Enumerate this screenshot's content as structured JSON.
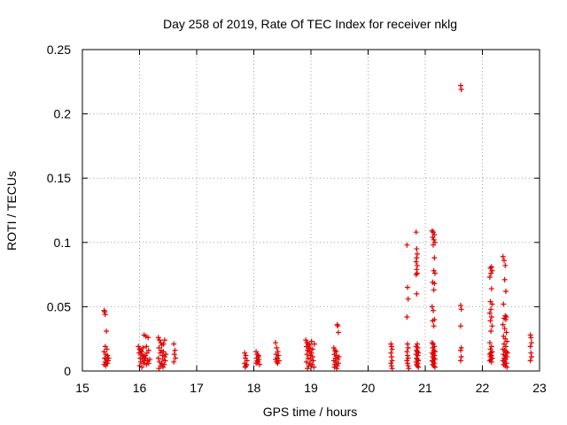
{
  "colors": {
    "marker": "#e00000",
    "grid": "#a0a0a0",
    "axis": "#000000"
  },
  "chart_data": {
    "type": "scatter",
    "title": "Day 258 of 2019, Rate Of TEC Index for receiver nklg",
    "xlabel": "GPS time / hours",
    "ylabel": "ROTI / TECUs",
    "xlim": [
      15,
      23
    ],
    "ylim": [
      0,
      0.25
    ],
    "xticks": [
      15,
      16,
      17,
      18,
      19,
      20,
      21,
      22,
      23
    ],
    "xtick_labels": [
      "15",
      "16",
      "17",
      "18",
      "19",
      "20",
      "21",
      "22",
      "23"
    ],
    "yticks": [
      0,
      0.05,
      0.1,
      0.15,
      0.2,
      0.25
    ],
    "ytick_labels": [
      "0",
      "0.05",
      "0.1",
      "0.15",
      "0.2",
      "0.25"
    ],
    "grid": true,
    "marker": "+",
    "series": [
      {
        "name": "ROTI",
        "points": [
          [
            15.38,
            0.047
          ],
          [
            15.39,
            0.046
          ],
          [
            15.4,
            0.044
          ],
          [
            15.42,
            0.031
          ],
          [
            15.4,
            0.019
          ],
          [
            15.43,
            0.017
          ],
          [
            15.38,
            0.015
          ],
          [
            15.41,
            0.013
          ],
          [
            15.44,
            0.012
          ],
          [
            15.39,
            0.01
          ],
          [
            15.42,
            0.009
          ],
          [
            15.45,
            0.008
          ],
          [
            15.4,
            0.007
          ],
          [
            15.43,
            0.006
          ],
          [
            15.38,
            0.005
          ],
          [
            15.41,
            0.004
          ],
          [
            15.44,
            0.006
          ],
          [
            15.46,
            0.01
          ],
          [
            15.98,
            0.019
          ],
          [
            16.0,
            0.017
          ],
          [
            16.02,
            0.016
          ],
          [
            16.04,
            0.015
          ],
          [
            15.99,
            0.014
          ],
          [
            16.03,
            0.013
          ],
          [
            16.06,
            0.012
          ],
          [
            16.08,
            0.011
          ],
          [
            16.01,
            0.01
          ],
          [
            16.05,
            0.009
          ],
          [
            16.09,
            0.008
          ],
          [
            16.11,
            0.01
          ],
          [
            16.02,
            0.007
          ],
          [
            16.07,
            0.006
          ],
          [
            16.12,
            0.005
          ],
          [
            16.14,
            0.008
          ],
          [
            16.0,
            0.004
          ],
          [
            16.1,
            0.012
          ],
          [
            16.13,
            0.014
          ],
          [
            16.16,
            0.016
          ],
          [
            16.08,
            0.028
          ],
          [
            16.11,
            0.027
          ],
          [
            16.15,
            0.026
          ],
          [
            16.06,
            0.018
          ],
          [
            16.18,
            0.009
          ],
          [
            16.04,
            0.003
          ],
          [
            16.16,
            0.006
          ],
          [
            16.12,
            0.019
          ],
          [
            16.33,
            0.026
          ],
          [
            16.35,
            0.024
          ],
          [
            16.37,
            0.022
          ],
          [
            16.39,
            0.02
          ],
          [
            16.34,
            0.018
          ],
          [
            16.38,
            0.016
          ],
          [
            16.42,
            0.015
          ],
          [
            16.36,
            0.014
          ],
          [
            16.4,
            0.012
          ],
          [
            16.44,
            0.011
          ],
          [
            16.33,
            0.01
          ],
          [
            16.41,
            0.009
          ],
          [
            16.45,
            0.008
          ],
          [
            16.35,
            0.007
          ],
          [
            16.39,
            0.006
          ],
          [
            16.43,
            0.005
          ],
          [
            16.37,
            0.004
          ],
          [
            16.41,
            0.003
          ],
          [
            16.46,
            0.013
          ],
          [
            16.44,
            0.024
          ],
          [
            16.42,
            0.021
          ],
          [
            16.34,
            0.002
          ],
          [
            16.6,
            0.021
          ],
          [
            16.62,
            0.016
          ],
          [
            16.61,
            0.013
          ],
          [
            16.63,
            0.01
          ],
          [
            16.6,
            0.007
          ],
          [
            17.84,
            0.014
          ],
          [
            17.86,
            0.012
          ],
          [
            17.85,
            0.01
          ],
          [
            17.88,
            0.008
          ],
          [
            17.84,
            0.006
          ],
          [
            17.87,
            0.005
          ],
          [
            17.86,
            0.004
          ],
          [
            17.85,
            0.003
          ],
          [
            18.04,
            0.015
          ],
          [
            18.06,
            0.013
          ],
          [
            18.08,
            0.012
          ],
          [
            18.05,
            0.01
          ],
          [
            18.09,
            0.009
          ],
          [
            18.07,
            0.007
          ],
          [
            18.04,
            0.006
          ],
          [
            18.1,
            0.005
          ],
          [
            18.06,
            0.008
          ],
          [
            18.08,
            0.011
          ],
          [
            18.38,
            0.022
          ],
          [
            18.4,
            0.018
          ],
          [
            18.42,
            0.015
          ],
          [
            18.39,
            0.013
          ],
          [
            18.43,
            0.012
          ],
          [
            18.41,
            0.01
          ],
          [
            18.38,
            0.009
          ],
          [
            18.44,
            0.008
          ],
          [
            18.4,
            0.007
          ],
          [
            18.42,
            0.006
          ],
          [
            18.91,
            0.024
          ],
          [
            18.93,
            0.022
          ],
          [
            18.95,
            0.021
          ],
          [
            18.98,
            0.02
          ],
          [
            18.92,
            0.019
          ],
          [
            18.96,
            0.018
          ],
          [
            19.0,
            0.017
          ],
          [
            18.94,
            0.016
          ],
          [
            18.97,
            0.015
          ],
          [
            19.01,
            0.014
          ],
          [
            18.93,
            0.013
          ],
          [
            18.99,
            0.012
          ],
          [
            19.03,
            0.011
          ],
          [
            18.95,
            0.01
          ],
          [
            19.0,
            0.009
          ],
          [
            19.04,
            0.008
          ],
          [
            18.92,
            0.007
          ],
          [
            18.98,
            0.006
          ],
          [
            19.02,
            0.005
          ],
          [
            18.96,
            0.004
          ],
          [
            19.05,
            0.003
          ],
          [
            18.94,
            0.002
          ],
          [
            19.03,
            0.017
          ],
          [
            19.06,
            0.021
          ],
          [
            19.01,
            0.023
          ],
          [
            19.4,
            0.018
          ],
          [
            19.42,
            0.016
          ],
          [
            19.44,
            0.015
          ],
          [
            19.41,
            0.013
          ],
          [
            19.45,
            0.012
          ],
          [
            19.43,
            0.01
          ],
          [
            19.47,
            0.009
          ],
          [
            19.4,
            0.008
          ],
          [
            19.44,
            0.007
          ],
          [
            19.48,
            0.006
          ],
          [
            19.42,
            0.005
          ],
          [
            19.46,
            0.004
          ],
          [
            19.41,
            0.003
          ],
          [
            19.45,
            0.002
          ],
          [
            19.46,
            0.036
          ],
          [
            19.47,
            0.035
          ],
          [
            19.48,
            0.03
          ],
          [
            19.49,
            0.011
          ],
          [
            20.4,
            0.021
          ],
          [
            20.41,
            0.019
          ],
          [
            20.42,
            0.017
          ],
          [
            20.4,
            0.014
          ],
          [
            20.41,
            0.011
          ],
          [
            20.42,
            0.008
          ],
          [
            20.4,
            0.006
          ],
          [
            20.41,
            0.004
          ],
          [
            20.42,
            0.002
          ],
          [
            20.68,
            0.098
          ],
          [
            20.69,
            0.065
          ],
          [
            20.7,
            0.056
          ],
          [
            20.68,
            0.042
          ],
          [
            20.69,
            0.021
          ],
          [
            20.7,
            0.018
          ],
          [
            20.68,
            0.015
          ],
          [
            20.69,
            0.012
          ],
          [
            20.7,
            0.01
          ],
          [
            20.68,
            0.008
          ],
          [
            20.69,
            0.006
          ],
          [
            20.7,
            0.004
          ],
          [
            20.71,
            0.002
          ],
          [
            20.84,
            0.108
          ],
          [
            20.85,
            0.095
          ],
          [
            20.86,
            0.091
          ],
          [
            20.85,
            0.088
          ],
          [
            20.84,
            0.085
          ],
          [
            20.86,
            0.082
          ],
          [
            20.85,
            0.079
          ],
          [
            20.86,
            0.076
          ],
          [
            20.84,
            0.075
          ],
          [
            20.85,
            0.06
          ],
          [
            20.86,
            0.021
          ],
          [
            20.84,
            0.019
          ],
          [
            20.87,
            0.018
          ],
          [
            20.85,
            0.016
          ],
          [
            20.86,
            0.015
          ],
          [
            20.88,
            0.014
          ],
          [
            20.84,
            0.013
          ],
          [
            20.87,
            0.012
          ],
          [
            20.85,
            0.01
          ],
          [
            20.86,
            0.009
          ],
          [
            20.88,
            0.008
          ],
          [
            20.84,
            0.007
          ],
          [
            20.87,
            0.006
          ],
          [
            20.85,
            0.005
          ],
          [
            20.86,
            0.004
          ],
          [
            20.88,
            0.003
          ],
          [
            21.12,
            0.109
          ],
          [
            21.14,
            0.108
          ],
          [
            21.16,
            0.106
          ],
          [
            21.13,
            0.104
          ],
          [
            21.15,
            0.102
          ],
          [
            21.17,
            0.1
          ],
          [
            21.14,
            0.098
          ],
          [
            21.16,
            0.088
          ],
          [
            21.15,
            0.078
          ],
          [
            21.17,
            0.076
          ],
          [
            21.13,
            0.069
          ],
          [
            21.16,
            0.068
          ],
          [
            21.15,
            0.063
          ],
          [
            21.12,
            0.05
          ],
          [
            21.14,
            0.047
          ],
          [
            21.16,
            0.04
          ],
          [
            21.13,
            0.039
          ],
          [
            21.15,
            0.035
          ],
          [
            21.12,
            0.022
          ],
          [
            21.14,
            0.021
          ],
          [
            21.16,
            0.019
          ],
          [
            21.13,
            0.018
          ],
          [
            21.15,
            0.016
          ],
          [
            21.17,
            0.015
          ],
          [
            21.12,
            0.014
          ],
          [
            21.14,
            0.013
          ],
          [
            21.16,
            0.012
          ],
          [
            21.13,
            0.011
          ],
          [
            21.15,
            0.01
          ],
          [
            21.17,
            0.009
          ],
          [
            21.12,
            0.008
          ],
          [
            21.14,
            0.007
          ],
          [
            21.16,
            0.006
          ],
          [
            21.13,
            0.005
          ],
          [
            21.15,
            0.004
          ],
          [
            21.17,
            0.003
          ],
          [
            21.62,
            0.222
          ],
          [
            21.63,
            0.219
          ],
          [
            21.62,
            0.051
          ],
          [
            21.63,
            0.048
          ],
          [
            21.62,
            0.035
          ],
          [
            21.63,
            0.018
          ],
          [
            21.62,
            0.016
          ],
          [
            21.63,
            0.011
          ],
          [
            21.62,
            0.008
          ],
          [
            22.14,
            0.08
          ],
          [
            22.16,
            0.081
          ],
          [
            22.17,
            0.078
          ],
          [
            22.15,
            0.076
          ],
          [
            22.13,
            0.073
          ],
          [
            22.16,
            0.064
          ],
          [
            22.14,
            0.054
          ],
          [
            22.17,
            0.052
          ],
          [
            22.15,
            0.048
          ],
          [
            22.13,
            0.045
          ],
          [
            22.16,
            0.042
          ],
          [
            22.14,
            0.039
          ],
          [
            22.17,
            0.035
          ],
          [
            22.15,
            0.031
          ],
          [
            22.13,
            0.022
          ],
          [
            22.16,
            0.019
          ],
          [
            22.14,
            0.017
          ],
          [
            22.17,
            0.015
          ],
          [
            22.15,
            0.014
          ],
          [
            22.13,
            0.013
          ],
          [
            22.16,
            0.012
          ],
          [
            22.14,
            0.011
          ],
          [
            22.17,
            0.01
          ],
          [
            22.15,
            0.009
          ],
          [
            22.13,
            0.008
          ],
          [
            22.16,
            0.007
          ],
          [
            22.36,
            0.089
          ],
          [
            22.38,
            0.086
          ],
          [
            22.4,
            0.082
          ],
          [
            22.39,
            0.071
          ],
          [
            22.41,
            0.062
          ],
          [
            22.37,
            0.052
          ],
          [
            22.4,
            0.043
          ],
          [
            22.42,
            0.042
          ],
          [
            22.38,
            0.041
          ],
          [
            22.41,
            0.04
          ],
          [
            22.36,
            0.036
          ],
          [
            22.39,
            0.033
          ],
          [
            22.42,
            0.03
          ],
          [
            22.37,
            0.027
          ],
          [
            22.4,
            0.025
          ],
          [
            22.43,
            0.023
          ],
          [
            22.38,
            0.021
          ],
          [
            22.41,
            0.019
          ],
          [
            22.36,
            0.017
          ],
          [
            22.39,
            0.016
          ],
          [
            22.42,
            0.015
          ],
          [
            22.37,
            0.013
          ],
          [
            22.4,
            0.012
          ],
          [
            22.43,
            0.011
          ],
          [
            22.38,
            0.01
          ],
          [
            22.41,
            0.009
          ],
          [
            22.36,
            0.008
          ],
          [
            22.39,
            0.007
          ],
          [
            22.42,
            0.006
          ],
          [
            22.37,
            0.005
          ],
          [
            22.4,
            0.004
          ],
          [
            22.43,
            0.003
          ],
          [
            22.44,
            0.014
          ],
          [
            22.84,
            0.028
          ],
          [
            22.85,
            0.026
          ],
          [
            22.86,
            0.022
          ],
          [
            22.84,
            0.019
          ],
          [
            22.85,
            0.014
          ],
          [
            22.86,
            0.011
          ],
          [
            22.84,
            0.008
          ]
        ]
      }
    ]
  }
}
